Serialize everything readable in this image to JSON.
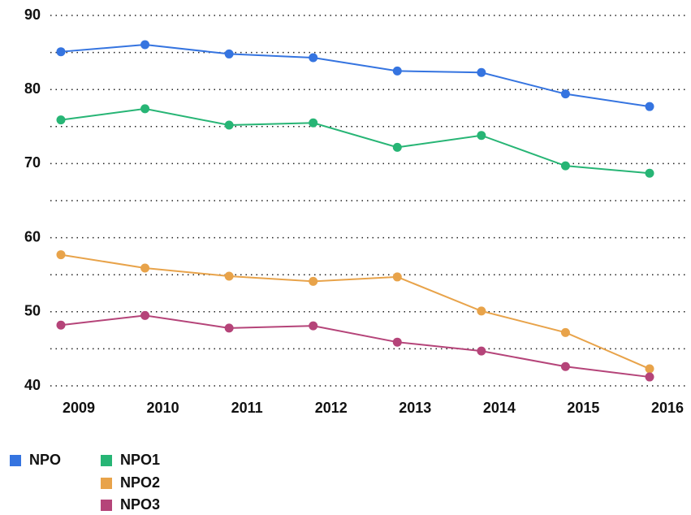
{
  "chart_data": {
    "type": "line",
    "categories": [
      "2009",
      "2010",
      "2011",
      "2012",
      "2013",
      "2014",
      "2015",
      "2016"
    ],
    "series": [
      {
        "name": "NPO",
        "color": "#3574e0",
        "values": [
          85.1,
          86.05,
          84.8,
          84.3,
          82.5,
          82.3,
          79.4,
          77.7
        ]
      },
      {
        "name": "NPO1",
        "color": "#27b575",
        "values": [
          75.9,
          77.4,
          75.2,
          75.5,
          72.2,
          73.8,
          69.7,
          68.7
        ]
      },
      {
        "name": "NPO2",
        "color": "#e8a34a",
        "values": [
          57.7,
          55.9,
          54.8,
          54.1,
          54.7,
          50.1,
          47.2,
          42.3
        ]
      },
      {
        "name": "NPO3",
        "color": "#b54479",
        "values": [
          48.2,
          49.5,
          47.8,
          48.1,
          45.9,
          44.7,
          42.6,
          41.2
        ]
      }
    ],
    "ylim": [
      40,
      90
    ],
    "yticks": [
      40,
      50,
      60,
      70,
      80,
      90
    ],
    "minor_yticks": [
      45,
      55,
      65,
      75,
      85
    ],
    "grid": true,
    "legend": "bottom"
  }
}
